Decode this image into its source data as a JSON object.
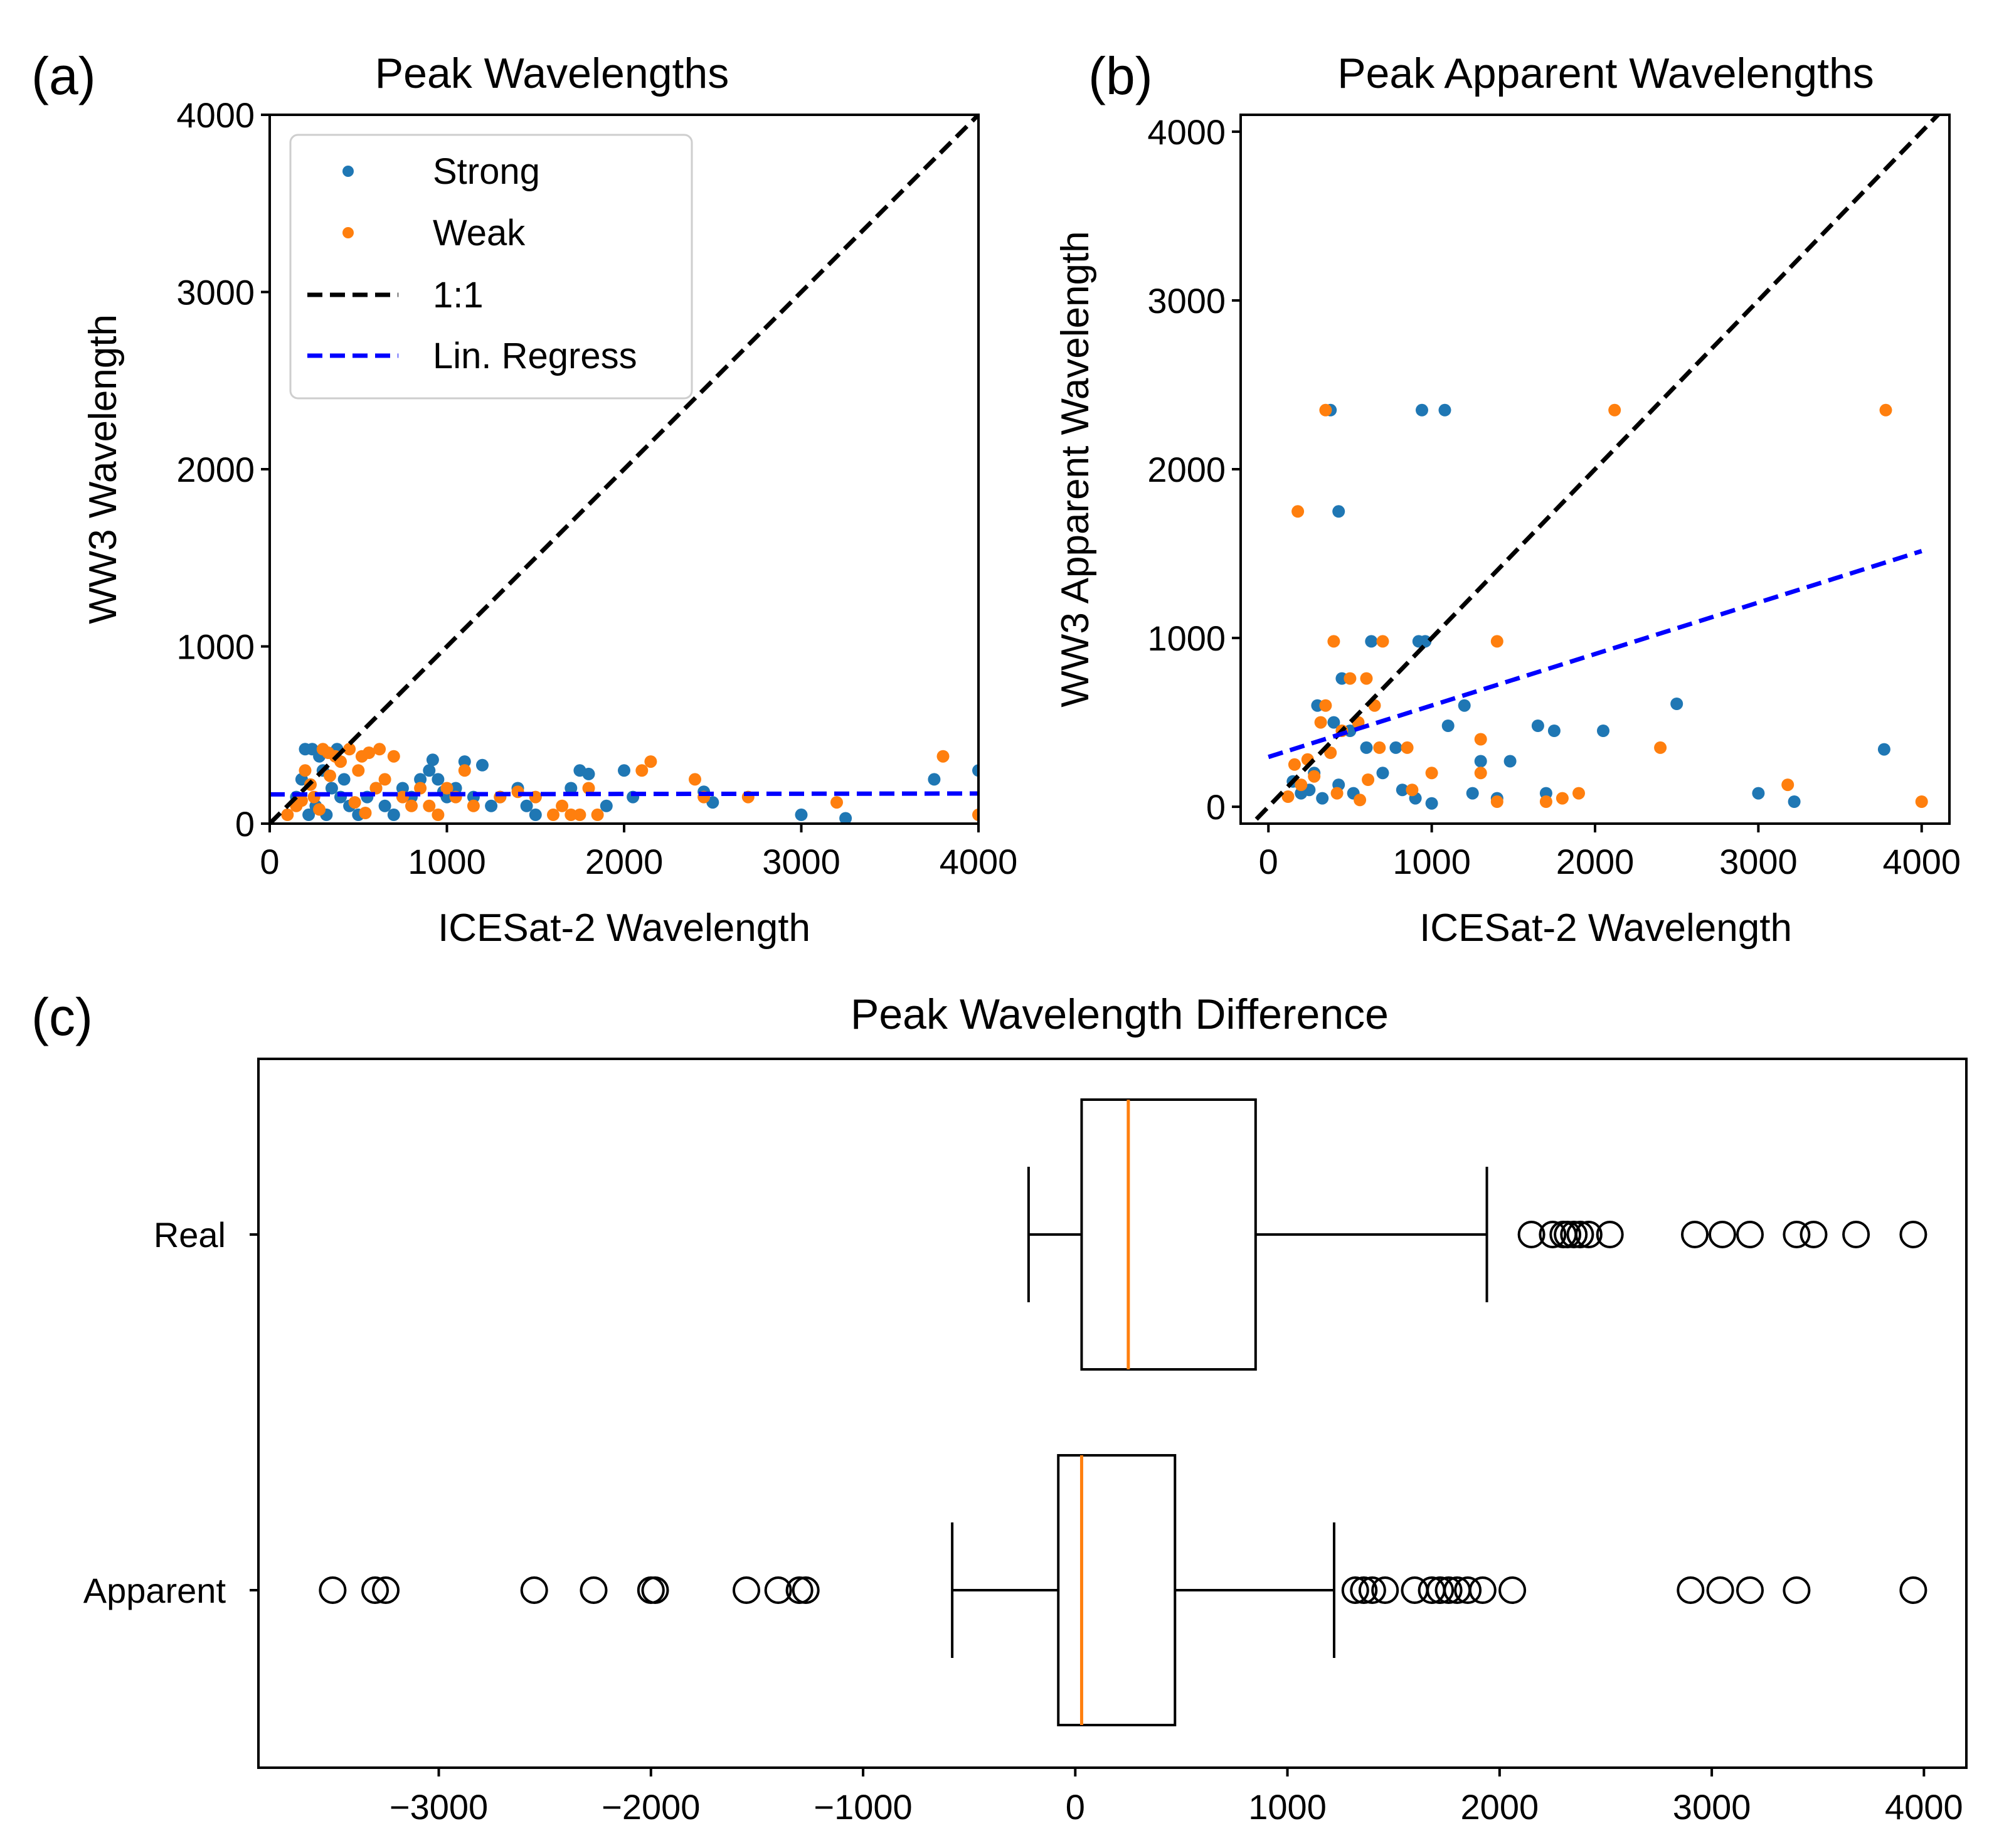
{
  "colors": {
    "strong": "#1f77b4",
    "weak": "#ff7f0e",
    "one_to_one": "#000000",
    "regression": "#0000ff",
    "median": "#ff7f0e"
  },
  "chart_data": [
    {
      "panel_label": "(a)",
      "type": "scatter",
      "title": "Peak Wavelengths",
      "xlabel": "ICESat-2 Wavelength",
      "ylabel": "WW3 Wavelength",
      "xlim": [
        0,
        4000
      ],
      "ylim": [
        0,
        4000
      ],
      "xticks": [
        0,
        1000,
        2000,
        3000,
        4000
      ],
      "yticks": [
        0,
        1000,
        2000,
        3000,
        4000
      ],
      "legend": {
        "placement": "top-left",
        "entries": [
          {
            "label": "Strong",
            "kind": "point",
            "series": "strong"
          },
          {
            "label": "Weak",
            "kind": "point",
            "series": "weak"
          },
          {
            "label": "1:1",
            "kind": "dashed-line",
            "series": "one_to_one"
          },
          {
            "label": "Lin. Regress",
            "kind": "dashed-line",
            "series": "regression"
          }
        ]
      },
      "lines": [
        {
          "name": "1:1",
          "color_key": "one_to_one",
          "x": [
            0,
            4000
          ],
          "y": [
            0,
            4000
          ]
        },
        {
          "name": "Lin. Regress",
          "color_key": "regression",
          "x": [
            0,
            4000
          ],
          "y": [
            165,
            170
          ]
        }
      ],
      "series": [
        {
          "name": "Strong",
          "color_key": "strong",
          "points": [
            [
              200,
              420
            ],
            [
              240,
              420
            ],
            [
              280,
              380
            ],
            [
              300,
              300
            ],
            [
              350,
              200
            ],
            [
              400,
              150
            ],
            [
              450,
              100
            ],
            [
              500,
              50
            ],
            [
              550,
              150
            ],
            [
              600,
              200
            ],
            [
              650,
              100
            ],
            [
              700,
              50
            ],
            [
              750,
              200
            ],
            [
              800,
              150
            ],
            [
              850,
              250
            ],
            [
              900,
              300
            ],
            [
              920,
              360
            ],
            [
              950,
              250
            ],
            [
              980,
              180
            ],
            [
              1000,
              150
            ],
            [
              1050,
              200
            ],
            [
              1100,
              350
            ],
            [
              1150,
              150
            ],
            [
              1200,
              330
            ],
            [
              1250,
              100
            ],
            [
              1300,
              150
            ],
            [
              1400,
              200
            ],
            [
              1450,
              100
            ],
            [
              1500,
              50
            ],
            [
              1700,
              200
            ],
            [
              1750,
              300
            ],
            [
              1800,
              280
            ],
            [
              1900,
              100
            ],
            [
              2000,
              300
            ],
            [
              2050,
              150
            ],
            [
              2450,
              180
            ],
            [
              2500,
              120
            ],
            [
              3000,
              50
            ],
            [
              3250,
              30
            ],
            [
              3750,
              250
            ],
            [
              4000,
              300
            ],
            [
              150,
              150
            ],
            [
              180,
              250
            ],
            [
              220,
              50
            ],
            [
              260,
              100
            ],
            [
              320,
              50
            ],
            [
              380,
              420
            ],
            [
              420,
              250
            ]
          ]
        },
        {
          "name": "Weak",
          "color_key": "weak",
          "points": [
            [
              100,
              50
            ],
            [
              150,
              100
            ],
            [
              200,
              300
            ],
            [
              250,
              150
            ],
            [
              300,
              420
            ],
            [
              330,
              400
            ],
            [
              370,
              380
            ],
            [
              400,
              350
            ],
            [
              450,
              420
            ],
            [
              500,
              300
            ],
            [
              520,
              380
            ],
            [
              560,
              400
            ],
            [
              600,
              200
            ],
            [
              620,
              420
            ],
            [
              650,
              250
            ],
            [
              700,
              380
            ],
            [
              750,
              150
            ],
            [
              800,
              100
            ],
            [
              850,
              200
            ],
            [
              900,
              100
            ],
            [
              950,
              50
            ],
            [
              1000,
              200
            ],
            [
              1050,
              150
            ],
            [
              1100,
              300
            ],
            [
              1150,
              100
            ],
            [
              1300,
              150
            ],
            [
              1400,
              180
            ],
            [
              1500,
              150
            ],
            [
              1600,
              50
            ],
            [
              1650,
              100
            ],
            [
              1700,
              50
            ],
            [
              1750,
              50
            ],
            [
              1800,
              200
            ],
            [
              1850,
              50
            ],
            [
              2100,
              300
            ],
            [
              2150,
              350
            ],
            [
              2400,
              250
            ],
            [
              2450,
              150
            ],
            [
              2700,
              150
            ],
            [
              3200,
              120
            ],
            [
              3800,
              380
            ],
            [
              4000,
              50
            ],
            [
              180,
              130
            ],
            [
              230,
              220
            ],
            [
              280,
              80
            ],
            [
              340,
              270
            ],
            [
              480,
              120
            ],
            [
              540,
              60
            ]
          ]
        }
      ]
    },
    {
      "panel_label": "(b)",
      "type": "scatter",
      "title": "Peak Apparent Wavelengths",
      "xlabel": "ICESat-2 Wavelength",
      "ylabel": "WW3 Apparent Wavelength",
      "xlim": [
        -170,
        4170
      ],
      "ylim": [
        -100,
        4100
      ],
      "xticks": [
        0,
        1000,
        2000,
        3000,
        4000
      ],
      "yticks": [
        0,
        1000,
        2000,
        3000,
        4000
      ],
      "lines": [
        {
          "name": "1:1",
          "color_key": "one_to_one",
          "x": [
            -170,
            4170
          ],
          "y": [
            -170,
            4170
          ]
        },
        {
          "name": "Lin. Regress",
          "color_key": "regression",
          "x": [
            0,
            4000
          ],
          "y": [
            295,
            1515
          ]
        }
      ],
      "series": [
        {
          "name": "Strong",
          "color_key": "strong",
          "points": [
            [
              380,
              2350
            ],
            [
              940,
              2350
            ],
            [
              1080,
              2350
            ],
            [
              430,
              1750
            ],
            [
              630,
              980
            ],
            [
              920,
              980
            ],
            [
              960,
              980
            ],
            [
              450,
              760
            ],
            [
              300,
              600
            ],
            [
              400,
              500
            ],
            [
              500,
              450
            ],
            [
              600,
              350
            ],
            [
              700,
              200
            ],
            [
              780,
              350
            ],
            [
              820,
              100
            ],
            [
              900,
              50
            ],
            [
              1000,
              20
            ],
            [
              1100,
              480
            ],
            [
              1200,
              600
            ],
            [
              1250,
              80
            ],
            [
              1300,
              270
            ],
            [
              1400,
              50
            ],
            [
              1480,
              270
            ],
            [
              1650,
              480
            ],
            [
              1700,
              80
            ],
            [
              1750,
              450
            ],
            [
              2050,
              450
            ],
            [
              2500,
              610
            ],
            [
              3000,
              80
            ],
            [
              3220,
              30
            ],
            [
              3770,
              340
            ],
            [
              150,
              150
            ],
            [
              200,
              80
            ],
            [
              250,
              100
            ],
            [
              280,
              200
            ],
            [
              330,
              50
            ],
            [
              430,
              130
            ],
            [
              520,
              80
            ]
          ]
        },
        {
          "name": "Weak",
          "color_key": "weak",
          "points": [
            [
              350,
              2350
            ],
            [
              2120,
              2350
            ],
            [
              3780,
              2350
            ],
            [
              180,
              1750
            ],
            [
              400,
              980
            ],
            [
              700,
              980
            ],
            [
              1400,
              980
            ],
            [
              500,
              760
            ],
            [
              600,
              760
            ],
            [
              350,
              600
            ],
            [
              650,
              600
            ],
            [
              450,
              450
            ],
            [
              550,
              500
            ],
            [
              680,
              350
            ],
            [
              850,
              350
            ],
            [
              880,
              100
            ],
            [
              1000,
              200
            ],
            [
              1300,
              400
            ],
            [
              1300,
              200
            ],
            [
              1400,
              30
            ],
            [
              1700,
              30
            ],
            [
              1800,
              50
            ],
            [
              1900,
              80
            ],
            [
              2400,
              350
            ],
            [
              3180,
              130
            ],
            [
              4000,
              30
            ],
            [
              120,
              60
            ],
            [
              160,
              250
            ],
            [
              200,
              130
            ],
            [
              240,
              280
            ],
            [
              280,
              180
            ],
            [
              320,
              500
            ],
            [
              380,
              320
            ],
            [
              420,
              80
            ],
            [
              560,
              40
            ],
            [
              610,
              160
            ]
          ]
        }
      ]
    },
    {
      "panel_label": "(c)",
      "type": "boxplot",
      "title": "Peak Wavelength Difference",
      "xlim": [
        -3850,
        4200
      ],
      "xticks": [
        -3000,
        -2000,
        -1000,
        0,
        1000,
        2000,
        3000,
        4000
      ],
      "xtick_labels": [
        "−3000",
        "−2000",
        "−1000",
        "0",
        "1000",
        "2000",
        "3000",
        "4000"
      ],
      "boxes": [
        {
          "label": "Real",
          "whisker_low": -220,
          "q1": 30,
          "median": 250,
          "q3": 850,
          "whisker_high": 1940,
          "outliers": [
            2150,
            2250,
            2300,
            2320,
            2350,
            2380,
            2420,
            2520,
            2920,
            3050,
            3180,
            3400,
            3480,
            3680,
            3950
          ]
        },
        {
          "label": "Apparent",
          "whisker_low": -580,
          "q1": -80,
          "median": 30,
          "q3": 470,
          "whisker_high": 1220,
          "outliers": [
            -3500,
            -3300,
            -3250,
            -2550,
            -2270,
            -2000,
            -1980,
            -1550,
            -1400,
            -1300,
            -1270,
            1320,
            1360,
            1400,
            1460,
            1600,
            1680,
            1720,
            1760,
            1800,
            1850,
            1920,
            2060,
            2900,
            3040,
            3180,
            3400,
            3950
          ]
        }
      ]
    }
  ]
}
